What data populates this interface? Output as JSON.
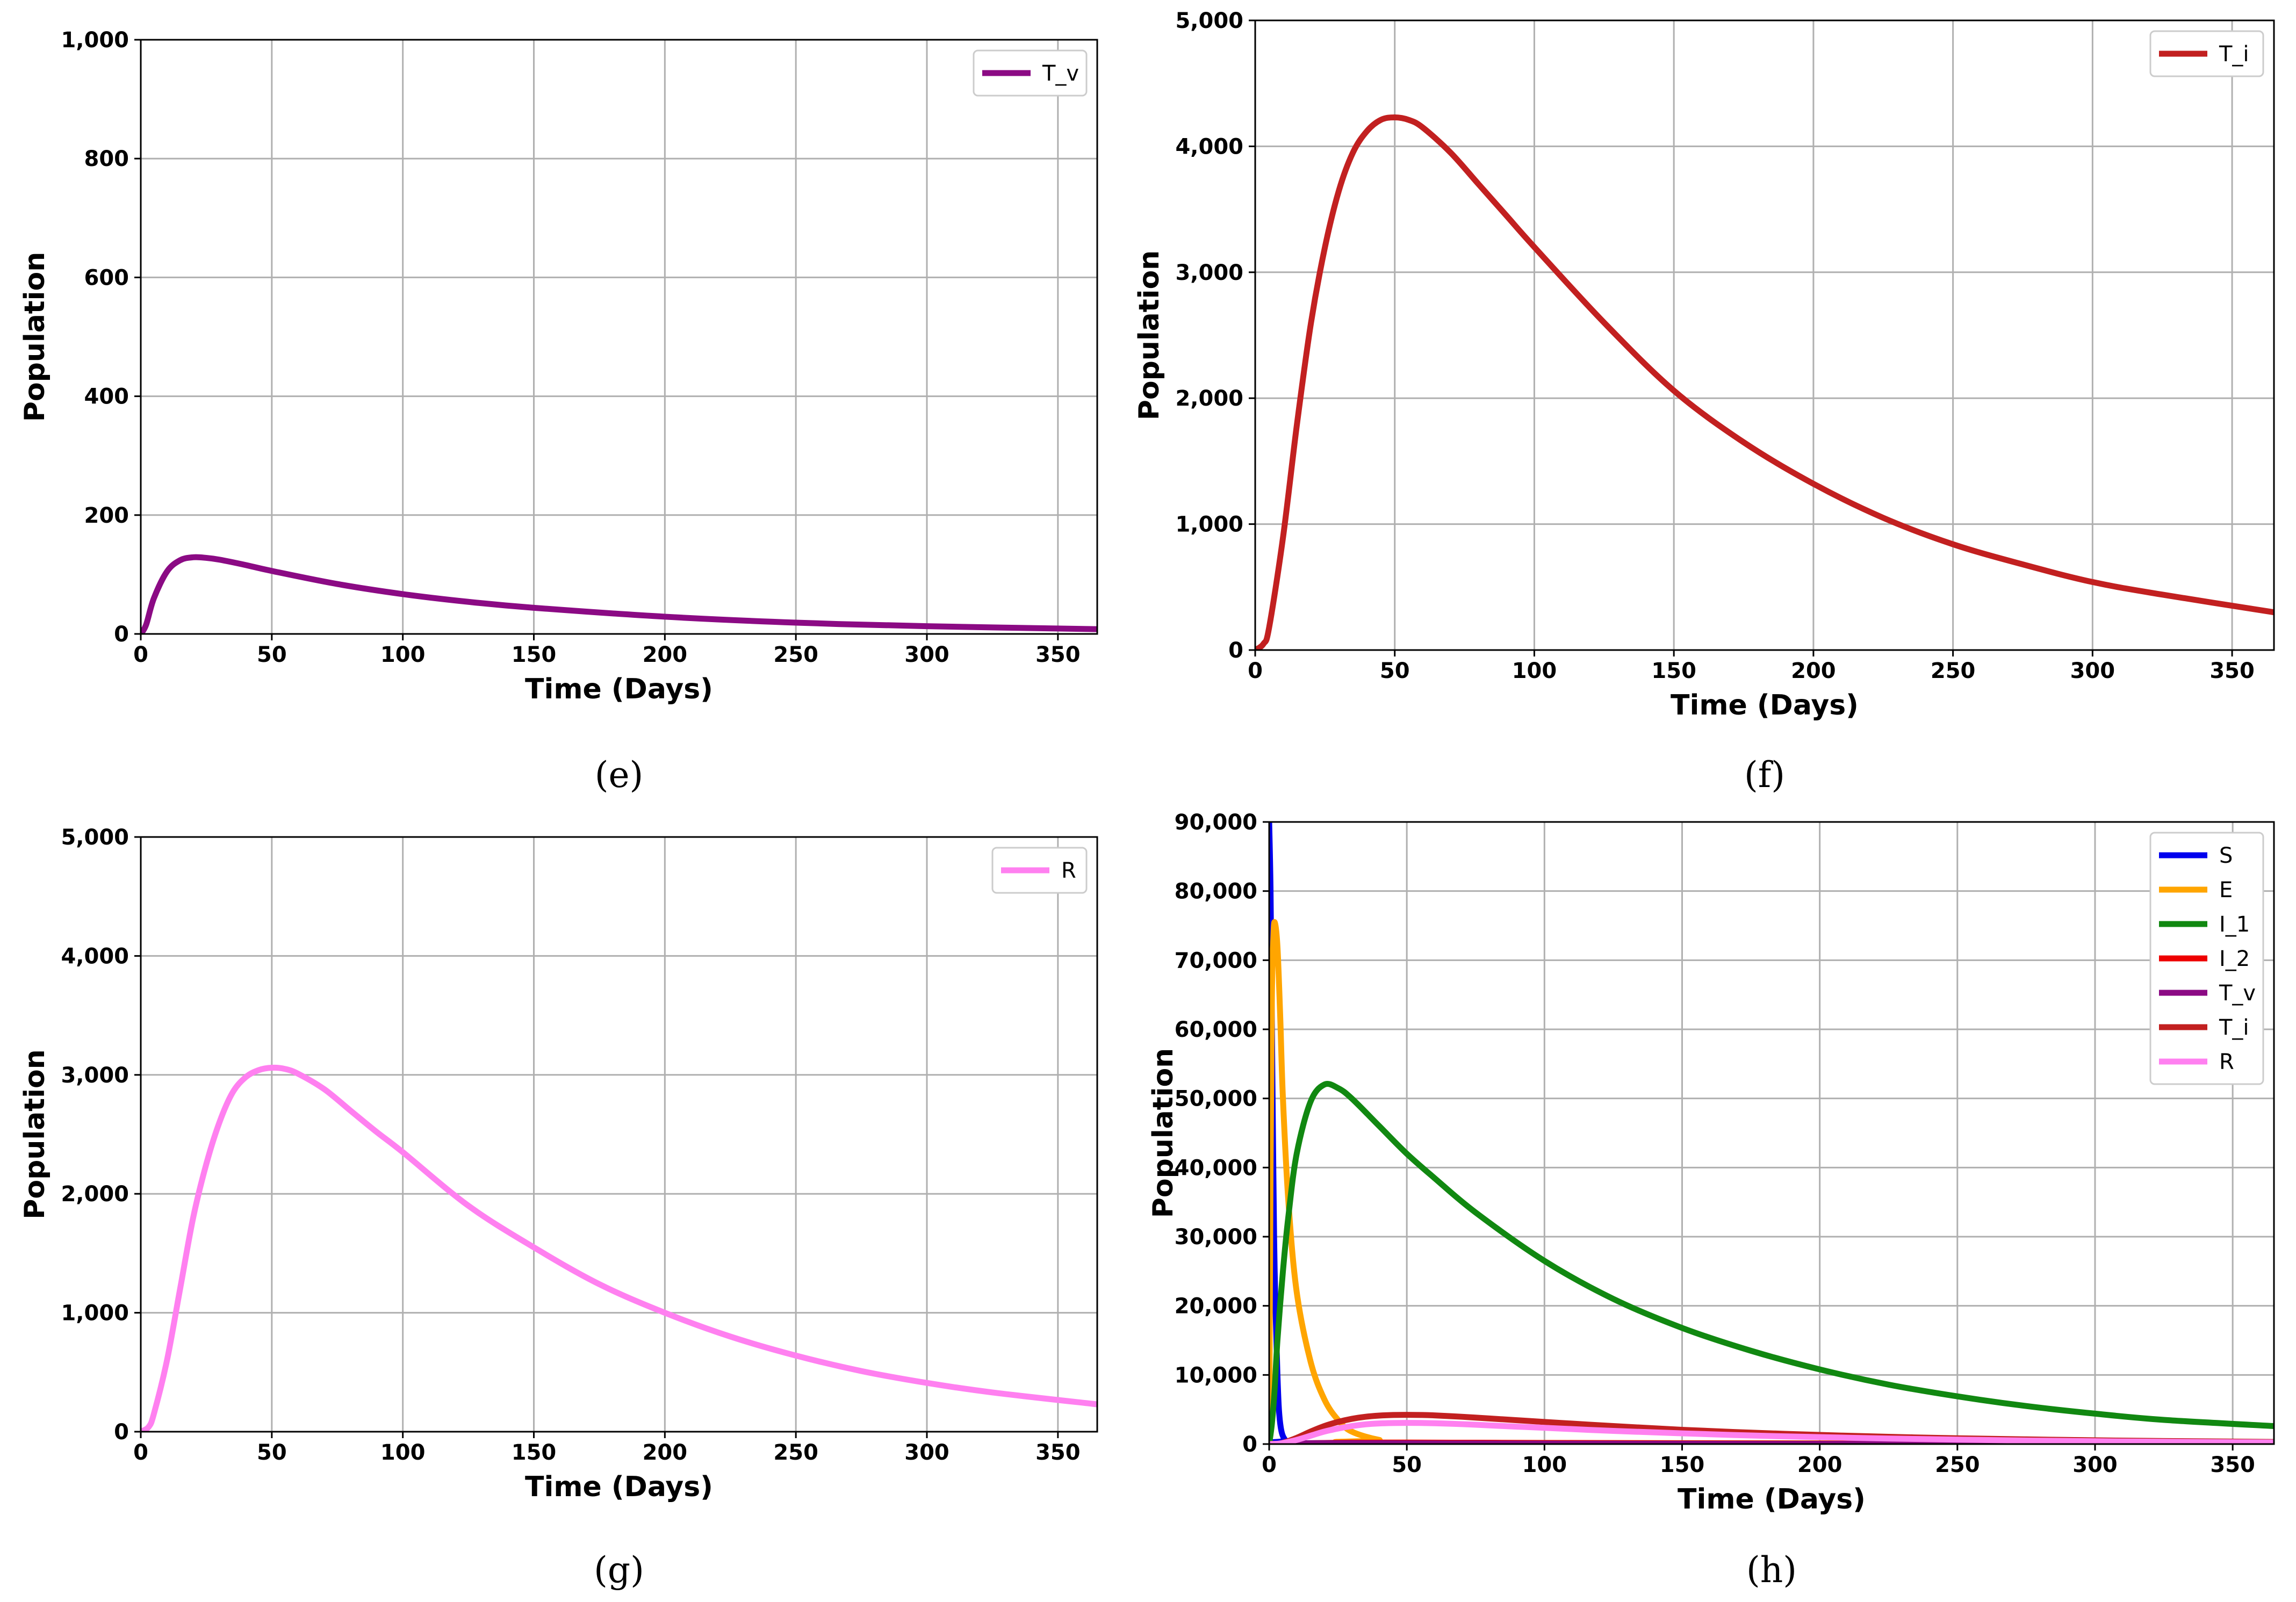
{
  "chart_data": [
    {
      "id": "e",
      "type": "line",
      "caption": "(e)",
      "xlabel": "Time (Days)",
      "ylabel": "Population",
      "xlim": [
        0,
        365
      ],
      "ylim": [
        0,
        1000
      ],
      "x_ticks": [
        0,
        50,
        100,
        150,
        200,
        250,
        300,
        350
      ],
      "x_tick_labels": [
        "0",
        "50",
        "100",
        "150",
        "200",
        "250",
        "300",
        "350"
      ],
      "y_ticks": [
        0,
        200,
        400,
        600,
        800,
        1000
      ],
      "y_tick_labels": [
        "0",
        "200",
        "400",
        "600",
        "800",
        "1,000"
      ],
      "grid": true,
      "legend_position": "top-right",
      "series": [
        {
          "name": "T_v",
          "color": "#8b0a84",
          "x": [
            0,
            2,
            5,
            10,
            15,
            20,
            25,
            30,
            40,
            50,
            75,
            100,
            125,
            150,
            200,
            250,
            300,
            365
          ],
          "y": [
            0,
            15,
            60,
            105,
            124,
            129,
            128,
            125,
            116,
            106,
            84,
            67,
            54,
            44,
            29,
            19,
            13,
            8
          ]
        }
      ]
    },
    {
      "id": "f",
      "type": "line",
      "caption": "(f)",
      "xlabel": "Time (Days)",
      "ylabel": "Population",
      "xlim": [
        0,
        365
      ],
      "ylim": [
        0,
        5000
      ],
      "x_ticks": [
        0,
        50,
        100,
        150,
        200,
        250,
        300,
        350
      ],
      "x_tick_labels": [
        "0",
        "50",
        "100",
        "150",
        "200",
        "250",
        "300",
        "350"
      ],
      "y_ticks": [
        0,
        1000,
        2000,
        3000,
        4000,
        5000
      ],
      "y_tick_labels": [
        "0",
        "1,000",
        "2,000",
        "3,000",
        "4,000",
        "5,000"
      ],
      "grid": true,
      "legend_position": "top-right",
      "series": [
        {
          "name": "T_i",
          "color": "#c22020",
          "x": [
            0,
            3,
            5,
            10,
            15,
            20,
            25,
            30,
            35,
            40,
            45,
            50,
            55,
            60,
            70,
            80,
            90,
            100,
            125,
            150,
            175,
            200,
            225,
            250,
            275,
            300,
            325,
            365
          ],
          "y": [
            0,
            50,
            180,
            900,
            1800,
            2600,
            3200,
            3650,
            3950,
            4120,
            4210,
            4230,
            4210,
            4150,
            3950,
            3700,
            3450,
            3200,
            2600,
            2060,
            1650,
            1320,
            1050,
            840,
            680,
            540,
            440,
            300
          ]
        }
      ]
    },
    {
      "id": "g",
      "type": "line",
      "caption": "(g)",
      "xlabel": "Time (Days)",
      "ylabel": "Population",
      "xlim": [
        0,
        365
      ],
      "ylim": [
        0,
        5000
      ],
      "x_ticks": [
        0,
        50,
        100,
        150,
        200,
        250,
        300,
        350
      ],
      "x_tick_labels": [
        "0",
        "50",
        "100",
        "150",
        "200",
        "250",
        "300",
        "350"
      ],
      "y_ticks": [
        0,
        1000,
        2000,
        3000,
        4000,
        5000
      ],
      "y_tick_labels": [
        "0",
        "1,000",
        "2,000",
        "3,000",
        "4,000",
        "5,000"
      ],
      "grid": true,
      "legend_position": "top-right",
      "series": [
        {
          "name": "R",
          "color": "#ff80f0",
          "x": [
            0,
            3,
            5,
            10,
            15,
            20,
            25,
            30,
            35,
            40,
            45,
            50,
            55,
            60,
            70,
            80,
            90,
            100,
            125,
            150,
            175,
            200,
            225,
            250,
            275,
            300,
            325,
            365
          ],
          "y": [
            0,
            40,
            150,
            600,
            1200,
            1800,
            2250,
            2600,
            2850,
            2980,
            3040,
            3060,
            3050,
            3010,
            2880,
            2700,
            2520,
            2350,
            1900,
            1550,
            1240,
            1000,
            800,
            640,
            510,
            410,
            330,
            230
          ]
        }
      ]
    },
    {
      "id": "h",
      "type": "line",
      "caption": "(h)",
      "xlabel": "Time (Days)",
      "ylabel": "Population",
      "xlim": [
        0,
        365
      ],
      "ylim": [
        0,
        90000
      ],
      "x_ticks": [
        0,
        50,
        100,
        150,
        200,
        250,
        300,
        350
      ],
      "x_tick_labels": [
        "0",
        "50",
        "100",
        "150",
        "200",
        "250",
        "300",
        "350"
      ],
      "y_ticks": [
        0,
        10000,
        20000,
        30000,
        40000,
        50000,
        60000,
        70000,
        80000,
        90000
      ],
      "y_tick_labels": [
        "0",
        "10,000",
        "20,000",
        "30,000",
        "40,000",
        "50,000",
        "60,000",
        "70,000",
        "80,000",
        "90,000"
      ],
      "grid": true,
      "legend_position": "top-right",
      "series": [
        {
          "name": "S",
          "color": "#0000ee",
          "x": [
            0,
            0.5,
            1,
            1.5,
            2,
            3,
            4,
            6,
            10,
            365
          ],
          "y": [
            90000,
            80000,
            60000,
            40000,
            25000,
            10000,
            3000,
            500,
            100,
            100
          ]
        },
        {
          "name": "E",
          "color": "#ffa500",
          "x": [
            0,
            0.5,
            1,
            1.5,
            2,
            3,
            4,
            5,
            7,
            10,
            15,
            20,
            25,
            30,
            40,
            50,
            365
          ],
          "y": [
            0,
            40000,
            65000,
            73000,
            75500,
            72000,
            62000,
            50000,
            35000,
            22000,
            12000,
            6500,
            3500,
            1800,
            600,
            200,
            50
          ]
        },
        {
          "name": "I_1",
          "color": "#118811",
          "x": [
            0,
            1,
            2,
            3,
            5,
            7,
            10,
            15,
            20,
            25,
            30,
            40,
            50,
            60,
            75,
            100,
            125,
            150,
            175,
            200,
            225,
            250,
            275,
            300,
            325,
            365
          ],
          "y": [
            0,
            3000,
            8000,
            15000,
            25000,
            33000,
            42000,
            49500,
            52000,
            51500,
            50000,
            46000,
            42000,
            38500,
            33500,
            26500,
            21000,
            16800,
            13500,
            10800,
            8600,
            6900,
            5500,
            4400,
            3500,
            2600
          ]
        },
        {
          "name": "I_2",
          "color": "#ee0000",
          "x": [
            0,
            5,
            10,
            20,
            30,
            50,
            75,
            100,
            150,
            200,
            250,
            300,
            365
          ],
          "y": [
            0,
            30,
            80,
            160,
            200,
            210,
            190,
            160,
            110,
            75,
            50,
            35,
            20
          ]
        },
        {
          "name": "T_v",
          "color": "#8b0a84",
          "x": [
            0,
            2,
            5,
            10,
            15,
            20,
            25,
            30,
            40,
            50,
            75,
            100,
            125,
            150,
            200,
            250,
            300,
            365
          ],
          "y": [
            0,
            15,
            60,
            105,
            124,
            129,
            128,
            125,
            116,
            106,
            84,
            67,
            54,
            44,
            29,
            19,
            13,
            8
          ]
        },
        {
          "name": "T_i",
          "color": "#c22020",
          "x": [
            0,
            3,
            5,
            10,
            15,
            20,
            25,
            30,
            35,
            40,
            45,
            50,
            55,
            60,
            70,
            80,
            90,
            100,
            125,
            150,
            175,
            200,
            225,
            250,
            275,
            300,
            325,
            365
          ],
          "y": [
            0,
            50,
            180,
            900,
            1800,
            2600,
            3200,
            3650,
            3950,
            4120,
            4210,
            4230,
            4210,
            4150,
            3950,
            3700,
            3450,
            3200,
            2600,
            2060,
            1650,
            1320,
            1050,
            840,
            680,
            540,
            440,
            300
          ]
        },
        {
          "name": "R",
          "color": "#ff80f0",
          "x": [
            0,
            3,
            5,
            10,
            15,
            20,
            25,
            30,
            35,
            40,
            45,
            50,
            55,
            60,
            70,
            80,
            90,
            100,
            125,
            150,
            175,
            200,
            225,
            250,
            275,
            300,
            325,
            365
          ],
          "y": [
            0,
            40,
            150,
            600,
            1200,
            1800,
            2250,
            2600,
            2850,
            2980,
            3040,
            3060,
            3050,
            3010,
            2880,
            2700,
            2520,
            2350,
            1900,
            1550,
            1240,
            1000,
            800,
            640,
            510,
            410,
            330,
            230
          ]
        }
      ]
    }
  ]
}
